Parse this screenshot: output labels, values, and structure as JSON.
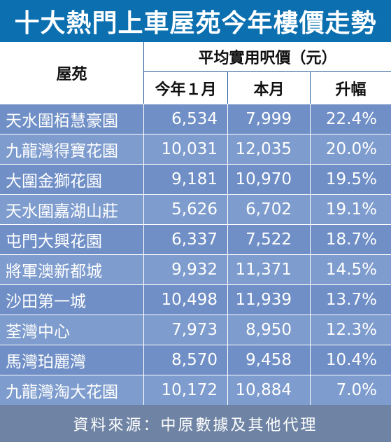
{
  "title": "十大熱門上車屋苑今年樓價走勢",
  "header": {
    "estate": "屋苑",
    "avg_price": "平均實用呎價（元）",
    "jan": "今年１月",
    "this_month": "本月",
    "rise": "升幅"
  },
  "rows": [
    {
      "name": "天水圍栢慧豪園",
      "jan": "6,534",
      "month": "7,999",
      "rise": "22.4%"
    },
    {
      "name": "九龍灣得寶花園",
      "jan": "10,031",
      "month": "12,035",
      "rise": "20.0%"
    },
    {
      "name": "大圍金獅花園",
      "jan": "9,181",
      "month": "10,970",
      "rise": "19.5%"
    },
    {
      "name": "天水圍嘉湖山莊",
      "jan": "5,626",
      "month": "6,702",
      "rise": "19.1%"
    },
    {
      "name": "屯門大興花園",
      "jan": "6,337",
      "month": "7,522",
      "rise": "18.7%"
    },
    {
      "name": "將軍澳新都城",
      "jan": "9,932",
      "month": "11,371",
      "rise": "14.5%"
    },
    {
      "name": "沙田第一城",
      "jan": "10,498",
      "month": "11,939",
      "rise": "13.7%"
    },
    {
      "name": "荃灣中心",
      "jan": "7,973",
      "month": "8,950",
      "rise": "12.3%"
    },
    {
      "name": "馬灣珀麗灣",
      "jan": "8,570",
      "month": "9,458",
      "rise": "10.4%"
    },
    {
      "name": "九龍灣淘大花園",
      "jan": "10,172",
      "month": "10,884",
      "rise": "7.0%"
    }
  ],
  "footer": "資料來源：中原數據及其他代理"
}
